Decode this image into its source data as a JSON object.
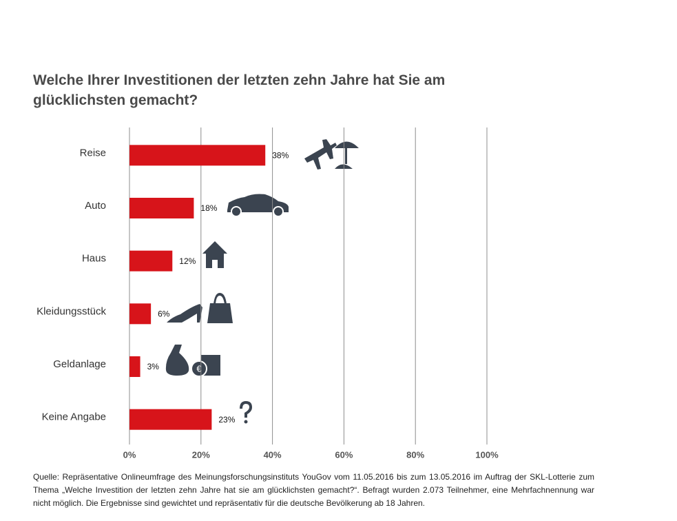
{
  "chart_data": {
    "type": "bar",
    "orientation": "horizontal",
    "title": "Welche Ihrer Investitionen der letzten zehn Jahre hat Sie am glücklichsten gemacht?",
    "categories": [
      "Reise",
      "Auto",
      "Haus",
      "Kleidungsstück",
      "Geldanlage",
      "Keine Angabe"
    ],
    "values": [
      38,
      18,
      12,
      6,
      3,
      23
    ],
    "value_labels": [
      "38%",
      "18%",
      "12%",
      "6%",
      "3%",
      "23%"
    ],
    "color": "#d7141a",
    "xlim": [
      0,
      100
    ],
    "xticks": [
      {
        "value": 0,
        "label": "0%"
      },
      {
        "value": 20,
        "label": "20%"
      },
      {
        "value": 40,
        "label": "40%"
      },
      {
        "value": 60,
        "label": "60%"
      },
      {
        "value": 80,
        "label": "80%"
      },
      {
        "value": 100,
        "label": "100%"
      }
    ],
    "grid": true,
    "footnote": "Quelle: Repräsentative Onlineumfrage des Meinungsforschungsinstituts YouGov vom 11.05.2016 bis zum 13.05.2016 im Auftrag der SKL-Lotterie zum Thema „Welche Investition der letzten zehn Jahre hat sie am glücklichsten gemacht?“. Befragt wurden 2.073 Teilnehmer, eine Mehrfachnennung war nicht möglich. Die Ergebnisse sind gewichtet und repräsentativ für die deutsche Bevölkerung ab 18 Jahren."
  }
}
